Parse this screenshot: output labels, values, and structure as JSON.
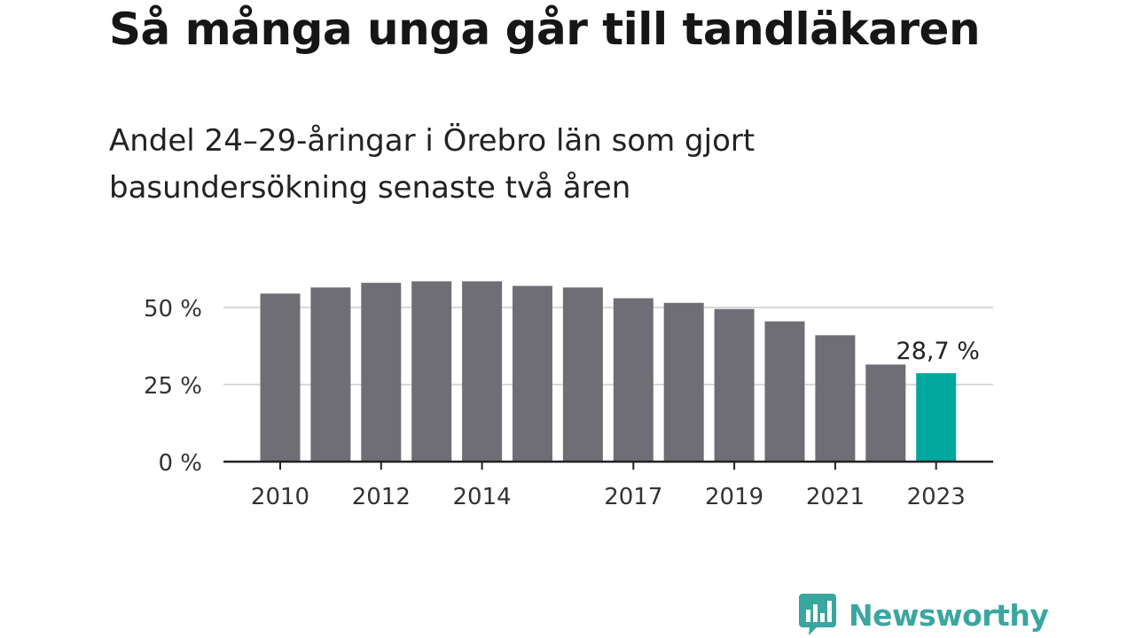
{
  "title": "Så många unga går till tandläkaren",
  "subtitle": "Andel 24–29-åringar i Örebro län som gjort basundersökning senaste två åren",
  "brand": {
    "name": "Newsworthy",
    "color": "#3aa6a0"
  },
  "colors": {
    "bar": "#6f6e75",
    "highlight": "#00a79d",
    "gridline": "#d9d9d9",
    "axis": "#222222"
  },
  "chart_data": {
    "type": "bar",
    "categories": [
      "2010",
      "2011",
      "2012",
      "2013",
      "2014",
      "2015",
      "2016",
      "2017",
      "2018",
      "2019",
      "2020",
      "2021",
      "2022",
      "2023"
    ],
    "values": [
      54.5,
      56.5,
      58,
      58.5,
      58.5,
      57,
      56.5,
      53,
      51.5,
      49.5,
      45.5,
      41,
      31.5,
      28.7
    ],
    "x_tick_labels": [
      "2010",
      "2012",
      "2014",
      "2017",
      "2019",
      "2021",
      "2023"
    ],
    "y_ticks": [
      0,
      25,
      50
    ],
    "y_tick_labels": [
      "0 %",
      "25 %",
      "50 %"
    ],
    "ylim": [
      0,
      60
    ],
    "highlight_index": 13,
    "data_label": "28,7 %",
    "grid": true,
    "xlabel": "",
    "ylabel": ""
  }
}
